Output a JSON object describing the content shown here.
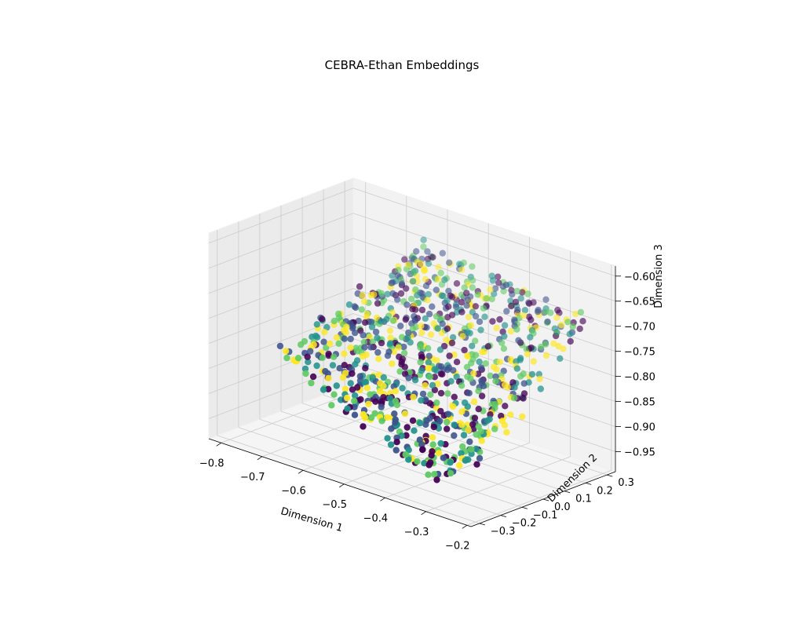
{
  "chart_data": {
    "type": "scatter",
    "title": "CEBRA-Ethan Embeddings",
    "xlabel": "Dimension 1",
    "ylabel": "Dimension 2",
    "zlabel": "Dimension 3",
    "xlim": [
      -0.83,
      -0.19
    ],
    "ylim": [
      -0.34,
      0.34
    ],
    "zlim": [
      -0.99,
      -0.58
    ],
    "xticks": [
      "−0.8",
      "−0.7",
      "−0.6",
      "−0.5",
      "−0.4",
      "−0.3",
      "−0.2"
    ],
    "yticks": [
      "−0.3",
      "−0.2",
      "−0.1",
      "0.0",
      "0.1",
      "0.2",
      "0.3"
    ],
    "zticks": [
      "−0.60",
      "−0.65",
      "−0.70",
      "−0.75",
      "−0.80",
      "−0.85",
      "−0.90",
      "−0.95"
    ],
    "colormap": [
      "#440154",
      "#3b528b",
      "#21918c",
      "#5ec962",
      "#fde725"
    ],
    "point_count": 900,
    "manifold": {
      "description": "3D scatter of embedding points forming a curved sheet",
      "x_range": [
        -0.8,
        -0.22
      ],
      "y_range": [
        -0.3,
        0.3
      ],
      "z_range": [
        -0.97,
        -0.6
      ]
    },
    "grid": true,
    "legend": "none"
  }
}
